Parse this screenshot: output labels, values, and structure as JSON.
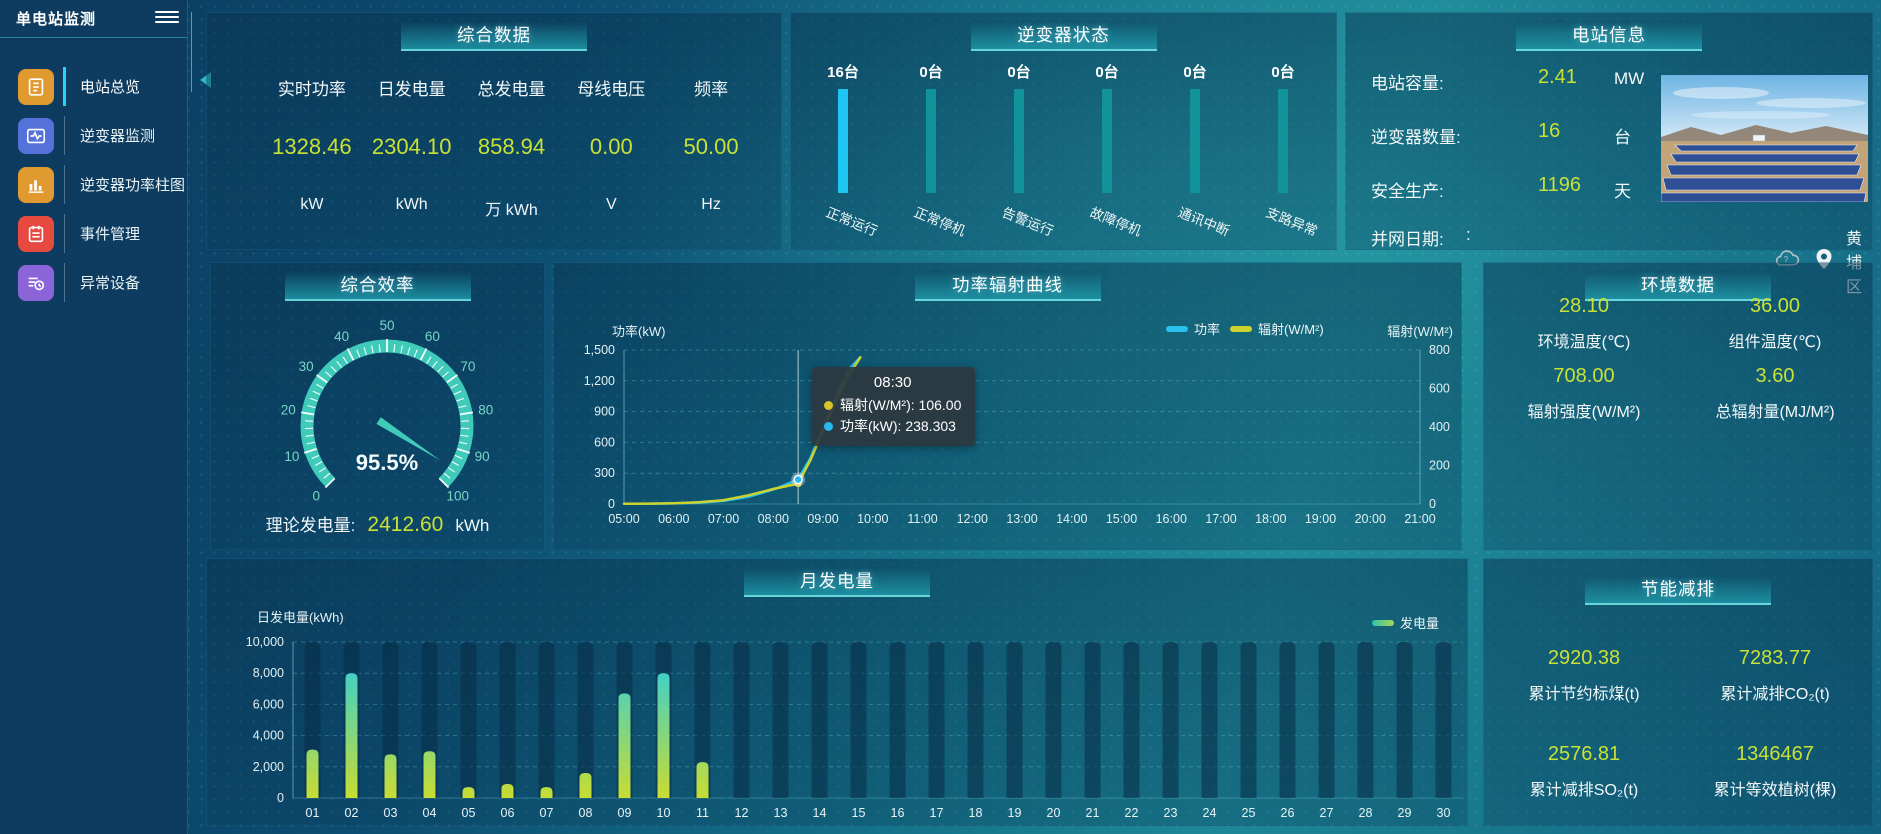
{
  "app": {
    "title": "单电站监测"
  },
  "sidebar": {
    "items": [
      {
        "label": "电站总览",
        "icon": "overview-doc-icon",
        "color": "#e09a30",
        "active": true
      },
      {
        "label": "逆变器监测",
        "icon": "inverter-wave-icon",
        "color": "#5572da",
        "active": false
      },
      {
        "label": "逆变器功率柱图",
        "icon": "power-bars-icon",
        "color": "#e09a30",
        "active": false
      },
      {
        "label": "事件管理",
        "icon": "event-notebook-icon",
        "color": "#e64a40",
        "active": false
      },
      {
        "label": "异常设备",
        "icon": "abnormal-device-icon",
        "color": "#8b64d8",
        "active": false
      }
    ]
  },
  "summary": {
    "title": "综合数据",
    "metrics": [
      {
        "label": "实时功率",
        "value": "1328.46",
        "unit": "kW"
      },
      {
        "label": "日发电量",
        "value": "2304.10",
        "unit": "kWh"
      },
      {
        "label": "总发电量",
        "value": "858.94",
        "unit": "万 kWh"
      },
      {
        "label": "母线电压",
        "value": "0.00",
        "unit": "V"
      },
      {
        "label": "频率",
        "value": "50.00",
        "unit": "Hz"
      }
    ]
  },
  "inverter_status": {
    "title": "逆变器状态",
    "bars": [
      {
        "count": "16台",
        "label": "正常运行",
        "color": "#1fc6f2"
      },
      {
        "count": "0台",
        "label": "正常停机",
        "color": "#12929b"
      },
      {
        "count": "0台",
        "label": "告警运行",
        "color": "#12929b"
      },
      {
        "count": "0台",
        "label": "故障停机",
        "color": "#12929b"
      },
      {
        "count": "0台",
        "label": "通讯中断",
        "color": "#12929b"
      },
      {
        "count": "0台",
        "label": "支路异常",
        "color": "#12929b"
      }
    ]
  },
  "station_info": {
    "title": "电站信息",
    "rows": [
      {
        "label": "电站容量:",
        "value": "2.41",
        "unit": "MW"
      },
      {
        "label": "逆变器数量:",
        "value": "16",
        "unit": "台"
      },
      {
        "label": "安全生产:",
        "value": "1196",
        "unit": "天"
      },
      {
        "label": "并网日期: ",
        "value": ":",
        "unit": ""
      }
    ],
    "location": "黄埔区"
  },
  "efficiency": {
    "title": "综合效率",
    "footer_label": "理论发电量:",
    "footer_value": "2412.60",
    "footer_unit": "kWh"
  },
  "power_curve": {
    "title": "功率辐射曲线",
    "left_axis_name": "功率(kW)",
    "right_axis_name": "辐射(W/M²)",
    "legend": [
      {
        "label": "功率",
        "color": "#29c0f0"
      },
      {
        "label": "辐射(W/M²)",
        "color": "#ccd32e"
      }
    ],
    "tooltip": {
      "time": "08:30",
      "rows": [
        {
          "text": "辐射(W/M²): 106.00",
          "color": "#d8c42a"
        },
        {
          "text": "功率(kW): 238.303",
          "color": "#29b8f0"
        }
      ]
    }
  },
  "environment": {
    "title": "环境数据",
    "metrics": [
      {
        "value": "28.10",
        "label": "环境温度(℃)"
      },
      {
        "value": "36.00",
        "label": "组件温度(℃)"
      },
      {
        "value": "708.00",
        "label": "辐射强度(W/M²)"
      },
      {
        "value": "3.60",
        "label": "总辐射量(MJ/M²)"
      }
    ]
  },
  "monthly": {
    "title": "月发电量",
    "ylabel": "日发电量(kWh)",
    "legend": "发电量"
  },
  "savings": {
    "title": "节能减排",
    "metrics": [
      {
        "value": "2920.38",
        "label": "累计节约标煤(t)"
      },
      {
        "value": "7283.77",
        "label": "累计减排CO₂(t)"
      },
      {
        "value": "2576.81",
        "label": "累计减排SO₂(t)"
      },
      {
        "value": "1346467",
        "label": "累计等效植树(棵)"
      }
    ]
  },
  "chart_data": [
    {
      "type": "gauge",
      "title": "综合效率",
      "min": 0,
      "max": 100,
      "value": 95.5,
      "value_label": "95.5%",
      "tick_labels": [
        0,
        10,
        20,
        30,
        40,
        50,
        60,
        70,
        80,
        90,
        100
      ],
      "color": "#3fcaba"
    },
    {
      "type": "line",
      "title": "功率辐射曲线",
      "x_ticks": [
        "05:00",
        "06:00",
        "07:00",
        "08:00",
        "09:00",
        "10:00",
        "11:00",
        "12:00",
        "13:00",
        "14:00",
        "15:00",
        "16:00",
        "17:00",
        "18:00",
        "19:00",
        "20:00",
        "21:00"
      ],
      "x_range": [
        5,
        21
      ],
      "left_axis": {
        "name": "功率(kW)",
        "min": 0,
        "max": 1500,
        "ticks": [
          "1,500",
          "1,200",
          "900",
          "600",
          "300",
          "0"
        ]
      },
      "right_axis": {
        "name": "辐射(W/M²)",
        "min": 0,
        "max": 800,
        "ticks": [
          "800",
          "600",
          "400",
          "200",
          "0"
        ]
      },
      "legend_position": "top-right",
      "grid": true,
      "series": [
        {
          "name": "功率",
          "axis": "left",
          "color": "#29c0f0",
          "points": [
            [
              5,
              2
            ],
            [
              5.5,
              3
            ],
            [
              6,
              6
            ],
            [
              6.5,
              12
            ],
            [
              7,
              30
            ],
            [
              7.5,
              70
            ],
            [
              8,
              140
            ],
            [
              8.5,
              238.3
            ],
            [
              8.75,
              450
            ],
            [
              9,
              750
            ],
            [
              9.25,
              1050
            ],
            [
              9.5,
              1300
            ],
            [
              9.75,
              1430
            ]
          ]
        },
        {
          "name": "辐射(W/M²)",
          "axis": "right",
          "color": "#ccd32e",
          "points": [
            [
              5,
              1
            ],
            [
              5.5,
              2
            ],
            [
              6,
              4
            ],
            [
              6.5,
              9
            ],
            [
              7,
              20
            ],
            [
              7.5,
              45
            ],
            [
              8,
              78
            ],
            [
              8.5,
              106
            ],
            [
              8.75,
              230
            ],
            [
              9,
              380
            ],
            [
              9.25,
              530
            ],
            [
              9.5,
              660
            ],
            [
              9.75,
              762
            ]
          ]
        }
      ],
      "crosshair_x": 8.5,
      "highlight_point": {
        "time": "08:30",
        "power": 238.303,
        "radiation": 106.0
      }
    },
    {
      "type": "bar",
      "title": "月发电量",
      "xlabel": "",
      "ylabel": "日发电量(kWh)",
      "ylim": [
        0,
        10000
      ],
      "yticks": [
        "10,000",
        "8,000",
        "6,000",
        "4,000",
        "2,000",
        "0"
      ],
      "legend": [
        "发电量"
      ],
      "categories": [
        "01",
        "02",
        "03",
        "04",
        "05",
        "06",
        "07",
        "08",
        "09",
        "10",
        "11",
        "12",
        "13",
        "14",
        "15",
        "16",
        "17",
        "18",
        "19",
        "20",
        "21",
        "22",
        "23",
        "24",
        "25",
        "26",
        "27",
        "28",
        "29",
        "30"
      ],
      "values": [
        3100,
        8000,
        2800,
        3000,
        700,
        900,
        700,
        1600,
        6700,
        8000,
        2300,
        0,
        0,
        0,
        0,
        0,
        0,
        0,
        0,
        0,
        0,
        0,
        0,
        0,
        0,
        0,
        0,
        0,
        0,
        0
      ],
      "bar_gradient": [
        "#c8dc32",
        "#22cde8"
      ]
    }
  ]
}
